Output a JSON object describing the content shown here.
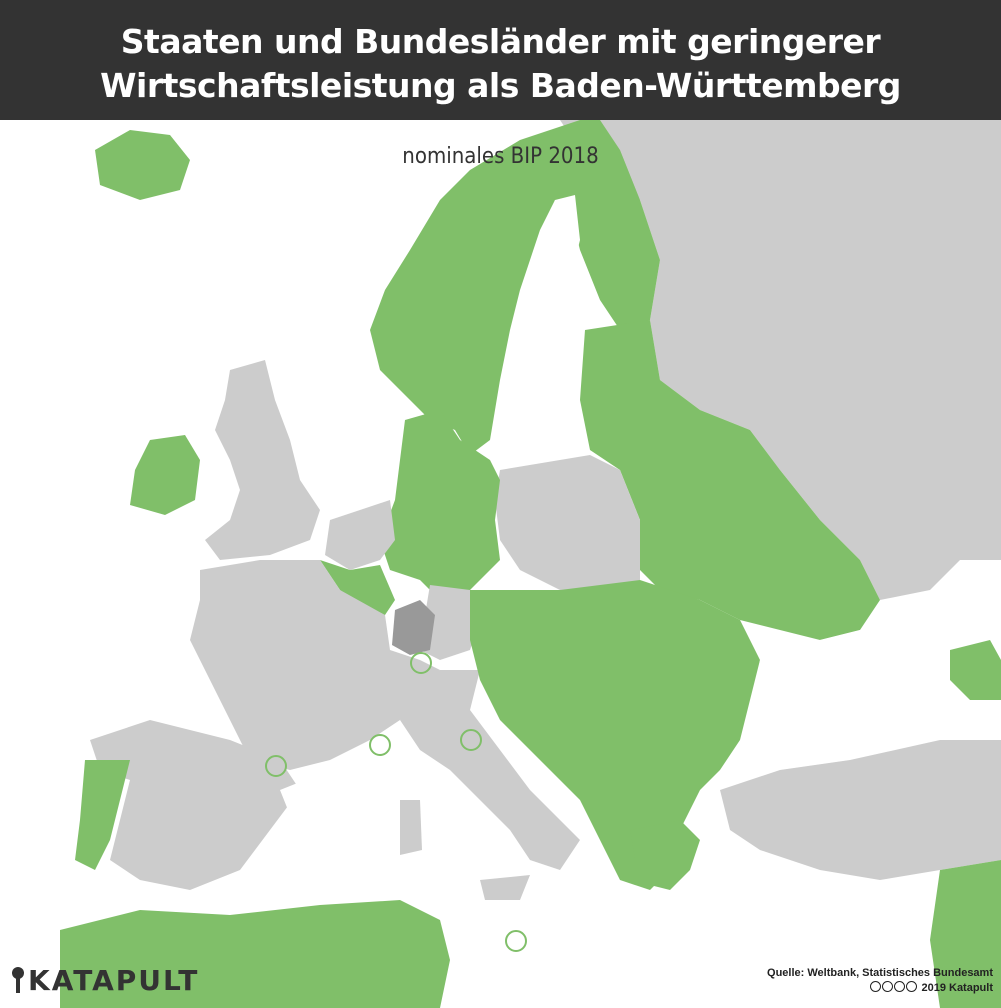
{
  "title": {
    "line1": "Staaten und Bundesländer mit geringerer",
    "line2": "Wirtschaftsleistung als Baden-Württemberg"
  },
  "subtitle": "nominales BIP 2018",
  "brand": "KATAPULT",
  "source": {
    "line1": "Quelle: Weltbank, Statistisches Bundesamt",
    "line2": "2019 Katapult"
  },
  "colors": {
    "lower": "#80bf69",
    "other": "#cccccc",
    "reference": "#999999",
    "sea": "#ffffff",
    "banner": "#333333"
  },
  "icons": [
    "katapult-logo-icon",
    "creative-commons-icon"
  ]
}
